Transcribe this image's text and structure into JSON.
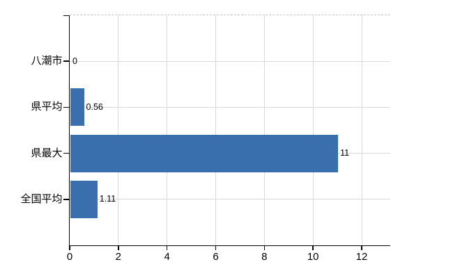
{
  "chart_data": {
    "type": "bar",
    "orientation": "horizontal",
    "title": "",
    "xlabel": "",
    "ylabel": "",
    "categories": [
      "八潮市",
      "県平均",
      "県最大",
      "全国平均"
    ],
    "values": [
      0,
      0.56,
      11,
      1.11
    ],
    "value_labels": [
      "0",
      "0.56",
      "11",
      "1.11"
    ],
    "x_ticks": [
      0,
      2,
      4,
      6,
      8,
      10,
      12
    ],
    "x_tick_labels": [
      "0",
      "2",
      "4",
      "6",
      "8",
      "10",
      "12"
    ],
    "xlim": [
      0,
      13.2
    ],
    "grid": true,
    "legend_position": "none",
    "bar_color": "#3a6fad",
    "grid_color": "#d9d9d9",
    "axis_color": "#000000",
    "text_color": "#000000",
    "background_color": "#ffffff"
  }
}
